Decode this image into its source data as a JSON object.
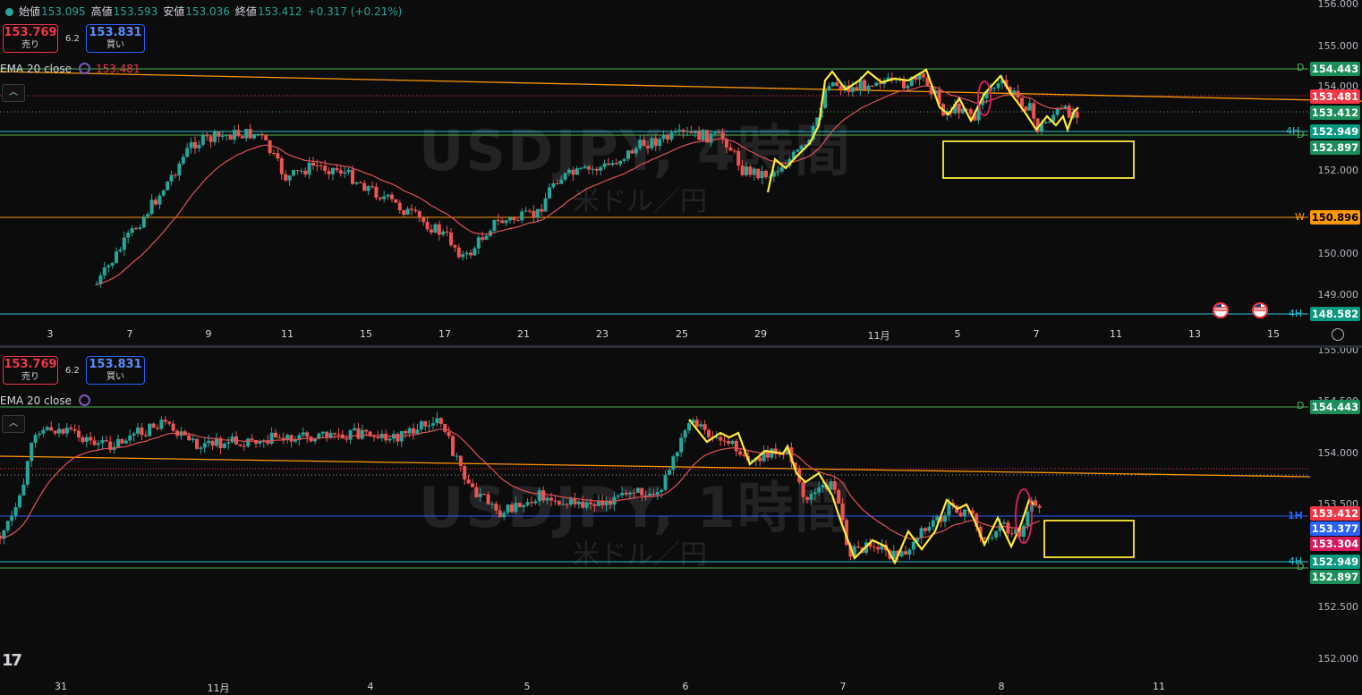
{
  "top": {
    "ohlc": {
      "open_label": "始値",
      "open": "153.095",
      "high_label": "高値",
      "high": "153.593",
      "low_label": "安値",
      "low": "153.036",
      "close_label": "終値",
      "close": "153.412",
      "change": "+0.317 (+0.21%)"
    },
    "sell": {
      "price": "153.769",
      "label": "売り"
    },
    "buy": {
      "price": "153.831",
      "label": "買い"
    },
    "spread": "6.2",
    "ema": {
      "label": "EMA 20 close",
      "value": "153.481"
    },
    "watermark": {
      "symbol": "USDJPY, 4時間",
      "name": "米ドル／円"
    },
    "y_axis": [
      "156.000",
      "155.000",
      "154.000",
      "152.000",
      "150.000",
      "149.000"
    ],
    "x_axis": [
      "3",
      "7",
      "9",
      "11",
      "15",
      "17",
      "21",
      "23",
      "25",
      "29",
      "11月",
      "5",
      "7",
      "11",
      "13",
      "15"
    ],
    "tags": [
      {
        "text": "154.443",
        "color": "green",
        "level": "D"
      },
      {
        "text": "153.481",
        "color": "red",
        "level": ""
      },
      {
        "text": "153.412",
        "color": "dark",
        "level": ""
      },
      {
        "text": "152.949",
        "color": "teal",
        "level": "4H"
      },
      {
        "text": "152.897",
        "color": "green",
        "level": "D"
      },
      {
        "text": "150.896",
        "color": "orange",
        "level": "W"
      },
      {
        "text": "148.582",
        "color": "teal",
        "level": "4H"
      }
    ]
  },
  "bottom": {
    "sell": {
      "price": "153.769",
      "label": "売り"
    },
    "buy": {
      "price": "153.831",
      "label": "買い"
    },
    "spread": "6.2",
    "ema": {
      "label": "EMA 20 close"
    },
    "watermark": {
      "symbol": "USDJPY, 1時間",
      "name": "米ドル／円"
    },
    "y_axis": [
      "155.000",
      "154.500",
      "154.000",
      "153.500",
      "152.500",
      "152.000"
    ],
    "x_axis": [
      "31",
      "11月",
      "4",
      "5",
      "6",
      "7",
      "8",
      "11"
    ],
    "tags": [
      {
        "text": "154.443",
        "color": "green",
        "level": "D"
      },
      {
        "text": "153.412",
        "color": "red",
        "level": "1H"
      },
      {
        "text": "153.377",
        "color": "blue",
        "level": ""
      },
      {
        "text": "153.304",
        "color": "pink",
        "level": ""
      },
      {
        "text": "152.949",
        "color": "teal",
        "level": "4H"
      },
      {
        "text": "152.897",
        "color": "green",
        "level": "D"
      }
    ]
  },
  "colors": {
    "up": "#26a69a",
    "down": "#ef5350",
    "ema": "#e05258",
    "trend": "#ff9800",
    "zigzag": "#ffeb3b",
    "ellipse": "#e91e63"
  }
}
